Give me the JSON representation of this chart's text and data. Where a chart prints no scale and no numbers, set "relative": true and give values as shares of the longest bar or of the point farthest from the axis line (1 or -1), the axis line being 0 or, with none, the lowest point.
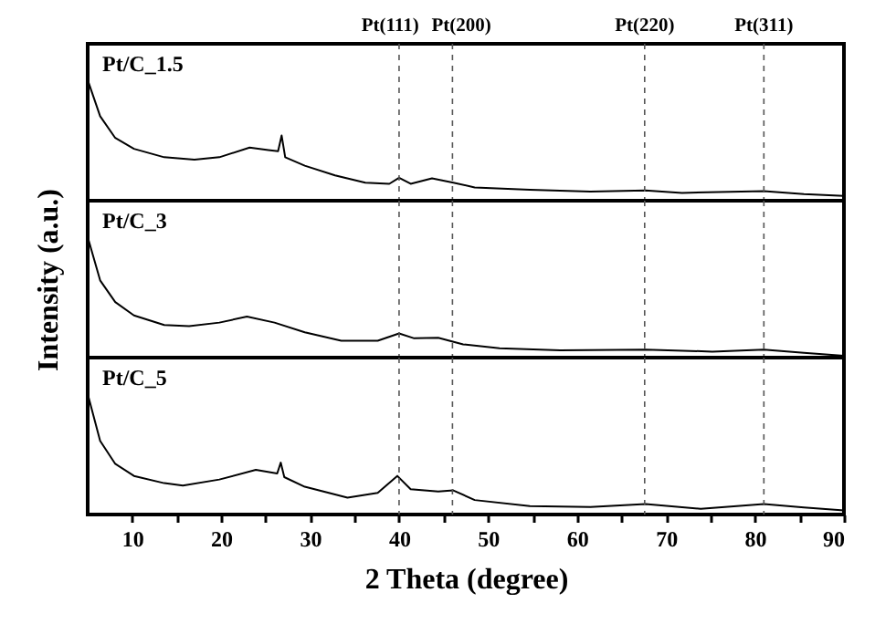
{
  "chart_data": [
    {
      "type": "line",
      "relative": true,
      "xlim": [
        5,
        90
      ],
      "tick_labels": false,
      "x": [
        5,
        6.4,
        8.1,
        10.2,
        13.6,
        17.0,
        19.8,
        23.2,
        25.3,
        26.4,
        26.8,
        27.2,
        29.4,
        32.8,
        36.2,
        38.9,
        40.0,
        41.3,
        43.7,
        46.1,
        48.5,
        54.7,
        61.5,
        67.7,
        71.8,
        81.0,
        85.5,
        90
      ],
      "series": [
        {
          "name": "Pt/C_1.5",
          "color": "#000000",
          "values": [
            1.0,
            0.7,
            0.52,
            0.43,
            0.36,
            0.34,
            0.36,
            0.44,
            0.42,
            0.41,
            0.54,
            0.36,
            0.29,
            0.21,
            0.15,
            0.14,
            0.19,
            0.14,
            0.185,
            0.15,
            0.11,
            0.09,
            0.075,
            0.085,
            0.065,
            0.08,
            0.055,
            0.04
          ]
        }
      ],
      "ref_lines": [
        {
          "axis": "x",
          "value": 40.0,
          "label": "Pt(111)",
          "color": "#555555",
          "line_style": "dashed"
        },
        {
          "axis": "x",
          "value": 46.0,
          "label": "Pt(200)",
          "color": "#555555",
          "line_style": "dashed"
        },
        {
          "axis": "x",
          "value": 67.6,
          "label": "Pt(220)",
          "color": "#555555",
          "line_style": "dashed"
        },
        {
          "axis": "x",
          "value": 81.0,
          "label": "Pt(311)",
          "color": "#555555",
          "line_style": "dashed"
        }
      ]
    },
    {
      "type": "line",
      "relative": true,
      "xlim": [
        5,
        90
      ],
      "tick_labels": false,
      "ylabel": "Intensity (a.u.)",
      "x": [
        5,
        6.4,
        8.1,
        10.2,
        13.6,
        16.4,
        19.8,
        22.9,
        26.0,
        29.4,
        33.5,
        37.6,
        40.0,
        41.7,
        44.4,
        47.2,
        51.3,
        58.1,
        67.7,
        75.2,
        81.0,
        85.5,
        90
      ],
      "series": [
        {
          "name": "Pt/C_3",
          "color": "#000000",
          "values": [
            1.0,
            0.64,
            0.46,
            0.35,
            0.27,
            0.26,
            0.29,
            0.34,
            0.29,
            0.21,
            0.14,
            0.14,
            0.2,
            0.16,
            0.165,
            0.11,
            0.077,
            0.06,
            0.067,
            0.05,
            0.067,
            0.04,
            0.015
          ]
        }
      ],
      "ref_lines": [
        {
          "axis": "x",
          "value": 40.0,
          "color": "#555555",
          "line_style": "dashed"
        },
        {
          "axis": "x",
          "value": 46.0,
          "color": "#555555",
          "line_style": "dashed"
        },
        {
          "axis": "x",
          "value": 67.6,
          "color": "#555555",
          "line_style": "dashed"
        },
        {
          "axis": "x",
          "value": 81.0,
          "color": "#555555",
          "line_style": "dashed"
        }
      ]
    },
    {
      "type": "line",
      "relative": true,
      "xlim": [
        5,
        90
      ],
      "tick_labels": "x",
      "xlabel": "2 Theta (degree)",
      "xticks": [
        10,
        {
          "value": 15,
          "label": null
        },
        20,
        {
          "value": 25,
          "label": null
        },
        30,
        {
          "value": 35,
          "label": null
        },
        40,
        {
          "value": 45,
          "label": null
        },
        50,
        {
          "value": 55,
          "label": null
        },
        60,
        {
          "value": 65,
          "label": null
        },
        70,
        {
          "value": 75,
          "label": null
        },
        80,
        {
          "value": 85,
          "label": null
        },
        90
      ],
      "x": [
        5,
        6.4,
        8.1,
        10.2,
        13.6,
        15.7,
        19.8,
        23.9,
        26.3,
        26.7,
        27.1,
        29.4,
        34.2,
        37.6,
        39.8,
        41.3,
        44.4,
        46.1,
        48.5,
        54.7,
        61.5,
        67.7,
        73.9,
        81.0,
        85.5,
        90
      ],
      "series": [
        {
          "name": "Pt/C_5",
          "color": "#000000",
          "values": [
            1.0,
            0.61,
            0.42,
            0.32,
            0.26,
            0.24,
            0.29,
            0.37,
            0.34,
            0.43,
            0.31,
            0.23,
            0.14,
            0.18,
            0.32,
            0.21,
            0.19,
            0.2,
            0.12,
            0.07,
            0.063,
            0.087,
            0.048,
            0.087,
            0.058,
            0.034
          ]
        }
      ],
      "ref_lines": [
        {
          "axis": "x",
          "value": 40.0,
          "color": "#555555",
          "line_style": "dashed"
        },
        {
          "axis": "x",
          "value": 46.0,
          "color": "#555555",
          "line_style": "dashed"
        },
        {
          "axis": "x",
          "value": 67.6,
          "color": "#555555",
          "line_style": "dashed"
        },
        {
          "axis": "x",
          "value": 81.0,
          "color": "#555555",
          "line_style": "dashed"
        }
      ]
    }
  ]
}
